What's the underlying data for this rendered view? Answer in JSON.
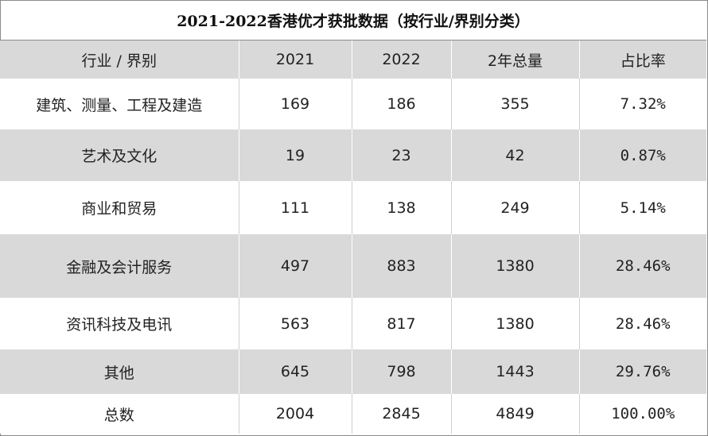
{
  "title": "2021-2022香港优才获批数据（按行业/界别分类）",
  "headers": [
    "行业 / 界别",
    "2021",
    "2022",
    "2年总量",
    "占比率"
  ],
  "rows": [
    {
      "category": "建筑、测量、工程及建造",
      "y2021": "169",
      "y2022": "186",
      "total": "355",
      "ratio": "7.32%"
    },
    {
      "category": "艺术及文化",
      "y2021": "19",
      "y2022": "23",
      "total": "42",
      "ratio": "0.87%"
    },
    {
      "category": "商业和贸易",
      "y2021": "111",
      "y2022": "138",
      "total": "249",
      "ratio": "5.14%"
    },
    {
      "category": "金融及会计服务",
      "y2021": "497",
      "y2022": "883",
      "total": "1380",
      "ratio": "28.46%"
    },
    {
      "category": "资讯科技及电讯",
      "y2021": "563",
      "y2022": "817",
      "total": "1380",
      "ratio": "28.46%"
    },
    {
      "category": "其他",
      "y2021": "645",
      "y2022": "798",
      "total": "1443",
      "ratio": "29.76%"
    },
    {
      "category": "总数",
      "y2021": "2004",
      "y2022": "2845",
      "total": "4849",
      "ratio": "100.00%"
    }
  ],
  "colors": {
    "header_bg": "#d9d9d9",
    "alt_row_bg": "#d9d9d9",
    "row_bg": "#ffffff",
    "border": "#8a8a8a"
  }
}
